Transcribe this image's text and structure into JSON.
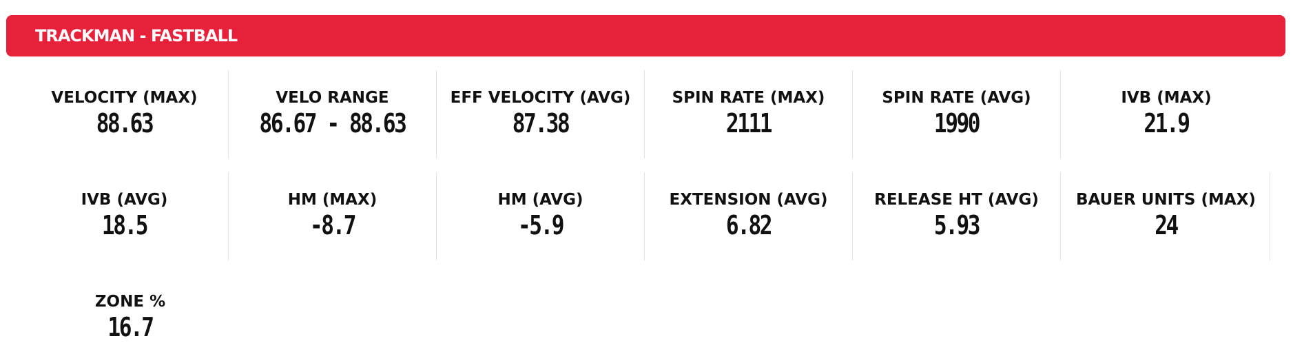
{
  "header": {
    "title": "TRACKMAN - FASTBALL",
    "color": "#e8213a"
  },
  "stats": [
    {
      "label": "VELOCITY (MAX)",
      "value": "88.63"
    },
    {
      "label": "VELO RANGE",
      "value": "86.67 - 88.63"
    },
    {
      "label": "EFF VELOCITY (AVG)",
      "value": "87.38"
    },
    {
      "label": "SPIN RATE (MAX)",
      "value": "2111"
    },
    {
      "label": "SPIN RATE (AVG)",
      "value": "1990"
    },
    {
      "label": "IVB (MAX)",
      "value": "21.9"
    },
    {
      "label": "IVB (AVG)",
      "value": "18.5"
    },
    {
      "label": "HM (MAX)",
      "value": "-8.7"
    },
    {
      "label": "HM (AVG)",
      "value": "-5.9"
    },
    {
      "label": "EXTENSION (AVG)",
      "value": "6.82"
    },
    {
      "label": "RELEASE HT (AVG)",
      "value": "5.93"
    },
    {
      "label": "BAUER UNITS (MAX)",
      "value": "24"
    },
    {
      "label": "ZONE %",
      "value": "16.7"
    }
  ]
}
